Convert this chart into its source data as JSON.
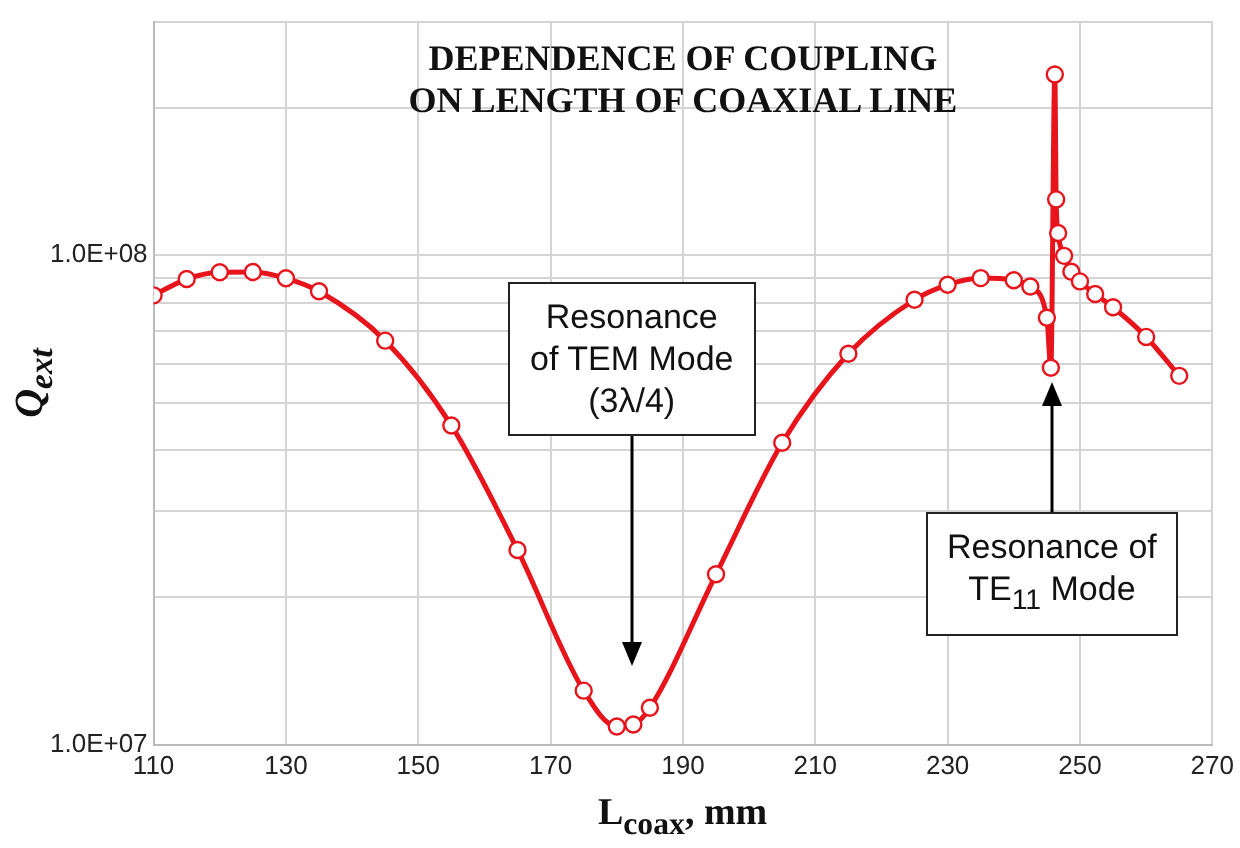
{
  "chart_data": {
    "type": "line",
    "title": "DEPENDENCE OF COUPLING\nON LENGTH OF COAXIAL LINE",
    "xlabel": "L$_{coax}$, mm",
    "ylabel": "Q$_{ext}$",
    "log": "y",
    "grid": true,
    "legend": false,
    "marker": "circle",
    "line_style": "solid",
    "xlim": [
      110,
      270
    ],
    "xticks": [
      110,
      130,
      150,
      170,
      190,
      210,
      230,
      250,
      270
    ],
    "ylim": [
      10000000,
      300000000
    ],
    "yticks": [
      {
        "value": 10000000,
        "label": "1.0E+07"
      },
      {
        "value": 20000000,
        "label": null
      },
      {
        "value": 30000000,
        "label": null
      },
      {
        "value": 40000000,
        "label": null
      },
      {
        "value": 50000000,
        "label": null
      },
      {
        "value": 60000000,
        "label": null
      },
      {
        "value": 70000000,
        "label": null
      },
      {
        "value": 80000000,
        "label": null
      },
      {
        "value": 90000000,
        "label": null
      },
      {
        "value": 100000000,
        "label": "1.0E+08"
      },
      {
        "value": 200000000,
        "label": null
      },
      {
        "value": 300000000,
        "label": null
      }
    ],
    "x": [
      110,
      115,
      120,
      125,
      130,
      135,
      145,
      155,
      165,
      175,
      180,
      182.5,
      185,
      195,
      205,
      215,
      225,
      230,
      235,
      240,
      242.5,
      245,
      245.6,
      246.2,
      246.4,
      246.7,
      247.6,
      248.7,
      250,
      252.3,
      255,
      260,
      265
    ],
    "series": [
      {
        "color": "#e8141b",
        "values": [
          82800000,
          89400000,
          92300000,
          92400000,
          89700000,
          84400000,
          66900000,
          44900000,
          25000000,
          12900000,
          10900000,
          11000000,
          11900000,
          22300000,
          41400000,
          62900000,
          81100000,
          87000000,
          89800000,
          88900000,
          86300000,
          74500000,
          58900000,
          234000000,
          130000000,
          111000000,
          99700000,
          92500000,
          88400000,
          83300000,
          78300000,
          68100000,
          56700000
        ]
      }
    ],
    "annotations": [
      "Resonance\nof TEM Mode\n(3λ/4)",
      "Resonance of\nTE$_{11}$ Mode"
    ]
  }
}
